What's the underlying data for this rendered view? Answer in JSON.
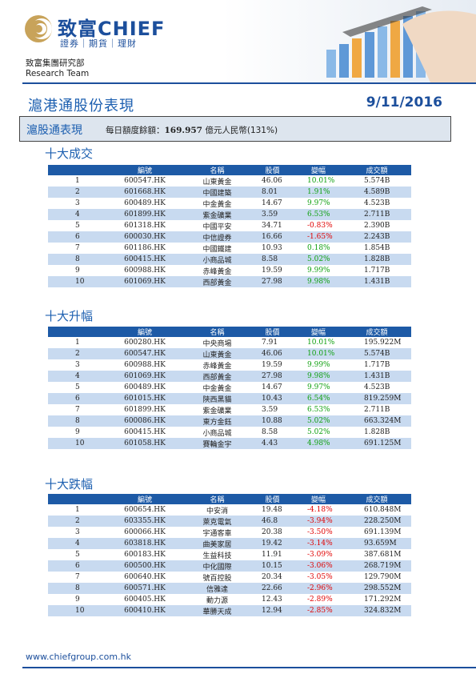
{
  "brand": {
    "name": "致富CHIEF",
    "tagline": "證券｜期貨｜理財",
    "dept_zh": "致富集團研究部",
    "dept_en": "Research Team"
  },
  "report": {
    "title": "滬港通股份表現",
    "date": "9/11/2016"
  },
  "summary": {
    "title": "滬股通表現",
    "label": "每日額度餘額：",
    "amount": "169.957",
    "unit": " 億元人民幣",
    "pct": "(131%)"
  },
  "columns": [
    "編號",
    "名稱",
    "股價",
    "變幅",
    "成交額"
  ],
  "colors": {
    "up": "#10a010",
    "down": "#e00000",
    "header": "#1d5aa6",
    "stripe": "#c8daf0"
  },
  "sections": [
    {
      "title": "十大成交",
      "rows": [
        {
          "rank": "1",
          "code": "600547.HK",
          "name": "山東黃金",
          "price": "46.06",
          "change": "10.01%",
          "dir": "up",
          "volume": "5.574B"
        },
        {
          "rank": "2",
          "code": "601668.HK",
          "name": "中國建築",
          "price": "8.01",
          "change": "1.91%",
          "dir": "up",
          "volume": "4.589B"
        },
        {
          "rank": "3",
          "code": "600489.HK",
          "name": "中金黃金",
          "price": "14.67",
          "change": "9.97%",
          "dir": "up",
          "volume": "4.523B"
        },
        {
          "rank": "4",
          "code": "601899.HK",
          "name": "紫金礦業",
          "price": "3.59",
          "change": "6.53%",
          "dir": "up",
          "volume": "2.711B"
        },
        {
          "rank": "5",
          "code": "601318.HK",
          "name": "中國平安",
          "price": "34.71",
          "change": "-0.83%",
          "dir": "down",
          "volume": "2.390B"
        },
        {
          "rank": "6",
          "code": "600030.HK",
          "name": "中信證券",
          "price": "16.66",
          "change": "-1.65%",
          "dir": "down",
          "volume": "2.243B"
        },
        {
          "rank": "7",
          "code": "601186.HK",
          "name": "中國鐵建",
          "price": "10.93",
          "change": "0.18%",
          "dir": "up",
          "volume": "1.854B"
        },
        {
          "rank": "8",
          "code": "600415.HK",
          "name": "小商品城",
          "price": "8.58",
          "change": "5.02%",
          "dir": "up",
          "volume": "1.828B"
        },
        {
          "rank": "9",
          "code": "600988.HK",
          "name": "赤峰黃金",
          "price": "19.59",
          "change": "9.99%",
          "dir": "up",
          "volume": "1.717B"
        },
        {
          "rank": "10",
          "code": "601069.HK",
          "name": "西部黃金",
          "price": "27.98",
          "change": "9.98%",
          "dir": "up",
          "volume": "1.431B"
        }
      ]
    },
    {
      "title": "十大升幅",
      "rows": [
        {
          "rank": "1",
          "code": "600280.HK",
          "name": "中央商場",
          "price": "7.91",
          "change": "10.01%",
          "dir": "up",
          "volume": "195.922M"
        },
        {
          "rank": "2",
          "code": "600547.HK",
          "name": "山東黃金",
          "price": "46.06",
          "change": "10.01%",
          "dir": "up",
          "volume": "5.574B"
        },
        {
          "rank": "3",
          "code": "600988.HK",
          "name": "赤峰黃金",
          "price": "19.59",
          "change": "9.99%",
          "dir": "up",
          "volume": "1.717B"
        },
        {
          "rank": "4",
          "code": "601069.HK",
          "name": "西部黃金",
          "price": "27.98",
          "change": "9.98%",
          "dir": "up",
          "volume": "1.431B"
        },
        {
          "rank": "5",
          "code": "600489.HK",
          "name": "中金黃金",
          "price": "14.67",
          "change": "9.97%",
          "dir": "up",
          "volume": "4.523B"
        },
        {
          "rank": "6",
          "code": "601015.HK",
          "name": "陝西黑貓",
          "price": "10.43",
          "change": "6.54%",
          "dir": "up",
          "volume": "819.259M"
        },
        {
          "rank": "7",
          "code": "601899.HK",
          "name": "紫金礦業",
          "price": "3.59",
          "change": "6.53%",
          "dir": "up",
          "volume": "2.711B"
        },
        {
          "rank": "8",
          "code": "600086.HK",
          "name": "東方金鈺",
          "price": "10.88",
          "change": "5.02%",
          "dir": "up",
          "volume": "663.324M"
        },
        {
          "rank": "9",
          "code": "600415.HK",
          "name": "小商品城",
          "price": "8.58",
          "change": "5.02%",
          "dir": "up",
          "volume": "1.828B"
        },
        {
          "rank": "10",
          "code": "601058.HK",
          "name": "賽輪金宇",
          "price": "4.43",
          "change": "4.98%",
          "dir": "up",
          "volume": "691.125M"
        }
      ]
    },
    {
      "title": "十大跌幅",
      "rows": [
        {
          "rank": "1",
          "code": "600654.HK",
          "name": "中安消",
          "price": "19.48",
          "change": "-4.18%",
          "dir": "down",
          "volume": "610.848M"
        },
        {
          "rank": "2",
          "code": "603355.HK",
          "name": "萊克電氣",
          "price": "46.8",
          "change": "-3.94%",
          "dir": "down",
          "volume": "228.250M"
        },
        {
          "rank": "3",
          "code": "600066.HK",
          "name": "宇通客車",
          "price": "20.38",
          "change": "-3.50%",
          "dir": "down",
          "volume": "691.139M"
        },
        {
          "rank": "4",
          "code": "603818.HK",
          "name": "曲美家居",
          "price": "19.42",
          "change": "-3.14%",
          "dir": "down",
          "volume": "93.659M"
        },
        {
          "rank": "5",
          "code": "600183.HK",
          "name": "生益科技",
          "price": "11.91",
          "change": "-3.09%",
          "dir": "down",
          "volume": "387.681M"
        },
        {
          "rank": "6",
          "code": "600500.HK",
          "name": "中化國際",
          "price": "10.15",
          "change": "-3.06%",
          "dir": "down",
          "volume": "268.719M"
        },
        {
          "rank": "7",
          "code": "600640.HK",
          "name": "號百控股",
          "price": "20.34",
          "change": "-3.05%",
          "dir": "down",
          "volume": "129.790M"
        },
        {
          "rank": "8",
          "code": "600571.HK",
          "name": "信雅達",
          "price": "22.66",
          "change": "-2.96%",
          "dir": "down",
          "volume": "298.552M"
        },
        {
          "rank": "9",
          "code": "600405.HK",
          "name": "動力源",
          "price": "12.43",
          "change": "-2.89%",
          "dir": "down",
          "volume": "171.292M"
        },
        {
          "rank": "10",
          "code": "600410.HK",
          "name": "華勝天成",
          "price": "12.94",
          "change": "-2.85%",
          "dir": "down",
          "volume": "324.832M"
        }
      ]
    }
  ],
  "footer": {
    "url": "www.chiefgroup.com.hk"
  }
}
